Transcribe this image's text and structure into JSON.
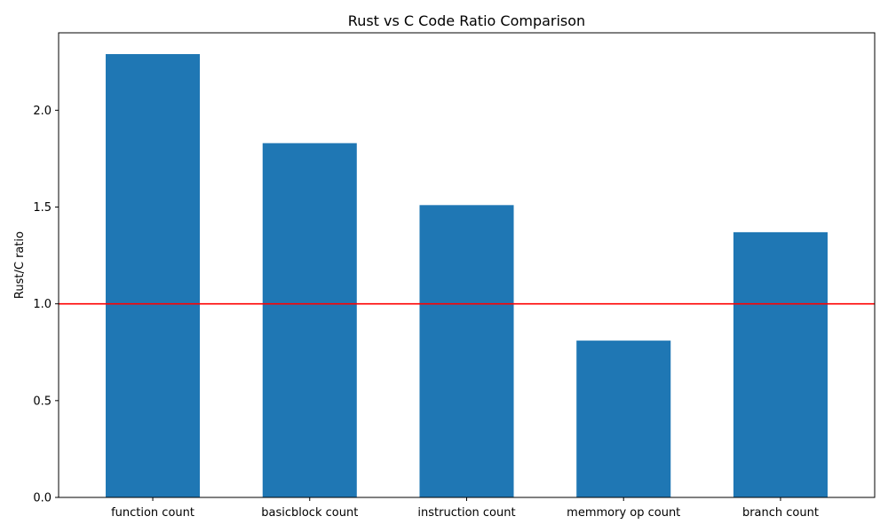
{
  "chart_data": {
    "type": "bar",
    "title": "Rust vs C Code Ratio Comparison",
    "xlabel": "",
    "ylabel": "Rust/C ratio",
    "categories": [
      "function count",
      "basicblock count",
      "instruction count",
      "memmory op count",
      "branch count"
    ],
    "values": [
      2.29,
      1.83,
      1.51,
      0.81,
      1.37
    ],
    "ylim": [
      0,
      2.4
    ],
    "yticks": [
      0.0,
      0.5,
      1.0,
      1.5,
      2.0
    ],
    "ytick_labels": [
      "0.0",
      "0.5",
      "1.0",
      "1.5",
      "2.0"
    ],
    "reference_line": {
      "y": 1.0,
      "color": "#ff0000"
    },
    "bar_color": "#1f77b4",
    "grid": false,
    "legend": "none"
  }
}
